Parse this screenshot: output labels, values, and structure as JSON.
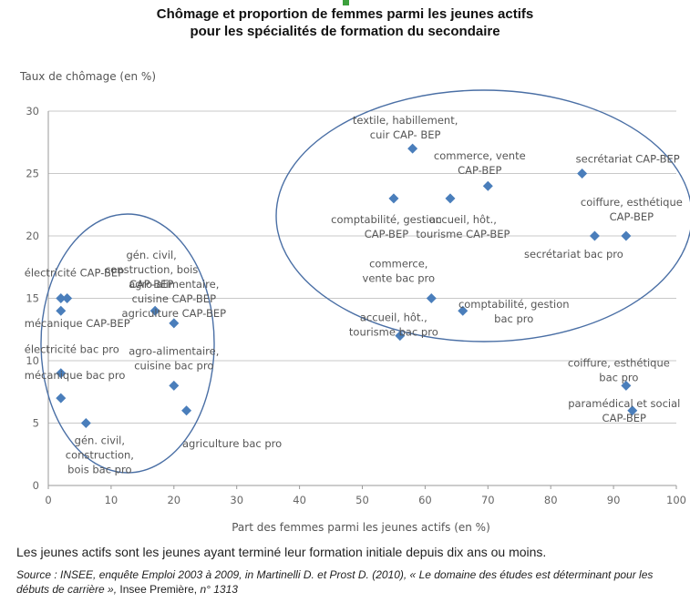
{
  "chart_data": {
    "type": "scatter",
    "title_line1": "Chômage et proportion de femmes parmi les jeunes actifs",
    "title_line2": "pour les spécialités de formation du secondaire",
    "ylabel": "Taux de chômage (en %)",
    "xlabel": "Part des  femmes parmi les jeunes actifs (en %)",
    "xlim": [
      0,
      100
    ],
    "ylim": [
      0,
      30
    ],
    "xticks": [
      "0",
      "10",
      "20",
      "30",
      "40",
      "50",
      "60",
      "70",
      "80",
      "90",
      "100"
    ],
    "yticks": [
      "0",
      "5",
      "10",
      "15",
      "20",
      "25",
      "30"
    ],
    "grid": "horizontal",
    "marker_color": "#4a7ebb",
    "circle_color": "#4a6fa5",
    "points": [
      {
        "x": 2,
        "y": 15,
        "label": [
          "électricité CAP-BEP"
        ]
      },
      {
        "x": 3,
        "y": 15,
        "label": []
      },
      {
        "x": 2,
        "y": 14,
        "label": [
          "mécanique CAP-BEP"
        ]
      },
      {
        "x": 2,
        "y": 9,
        "label": [
          "électricité bac pro"
        ]
      },
      {
        "x": 2,
        "y": 7,
        "label": [
          "mécanique bac pro"
        ]
      },
      {
        "x": 6,
        "y": 5,
        "label": [
          "gén. civil,",
          "construction,",
          "bois bac pro"
        ]
      },
      {
        "x": 17,
        "y": 14,
        "label": [
          "gén. civil,",
          "construction, bois",
          "CAP-BEP"
        ]
      },
      {
        "x": 20,
        "y": 13,
        "label": [
          "agro-alimentaire,",
          "cuisine CAP-BEP",
          "agriculture CAP-BEP"
        ]
      },
      {
        "x": 20,
        "y": 8,
        "label": [
          "agro-alimentaire,",
          "cuisine bac pro"
        ]
      },
      {
        "x": 22,
        "y": 6,
        "label": [
          "agriculture bac pro"
        ]
      },
      {
        "x": 58,
        "y": 27,
        "label": [
          "textile, habillement,",
          "cuir CAP- BEP"
        ]
      },
      {
        "x": 55,
        "y": 23,
        "label": [
          "comptabilité, gestion",
          "CAP-BEP"
        ]
      },
      {
        "x": 64,
        "y": 23,
        "label": [
          "accueil, hôt.,",
          "tourisme CAP-BEP"
        ]
      },
      {
        "x": 70,
        "y": 24,
        "label": [
          "commerce, vente",
          "CAP-BEP"
        ]
      },
      {
        "x": 85,
        "y": 25,
        "label": [
          "secrétariat  CAP-BEP"
        ]
      },
      {
        "x": 87,
        "y": 20,
        "label": [
          "secrétariat bac pro"
        ]
      },
      {
        "x": 92,
        "y": 20,
        "label": [
          "coiffure, esthétique",
          "CAP-BEP"
        ]
      },
      {
        "x": 61,
        "y": 15,
        "label": [
          "commerce,",
          "vente bac pro"
        ]
      },
      {
        "x": 66,
        "y": 14,
        "label": [
          "comptabilité, gestion",
          "bac pro"
        ]
      },
      {
        "x": 56,
        "y": 12,
        "label": [
          "accueil, hôt.,",
          "tourisme bac pro"
        ]
      },
      {
        "x": 92,
        "y": 8,
        "label": [
          "coiffure, esthétique",
          "bac pro"
        ]
      },
      {
        "x": 93,
        "y": 6,
        "label": [
          "paramédical et social",
          "CAP-BEP"
        ]
      }
    ]
  },
  "footnote": "Les jeunes actifs sont les jeunes ayant terminé leur formation initiale depuis dix ans ou moins.",
  "source_italic": "Source : INSEE, enquête Emploi 2003 à 2009, in Martinelli D. et Prost D. (2010), « Le domaine des études est déterminant pour les débuts de carrière »,",
  "source_plain": " Insee Première, ",
  "source_number": "n° 1313"
}
